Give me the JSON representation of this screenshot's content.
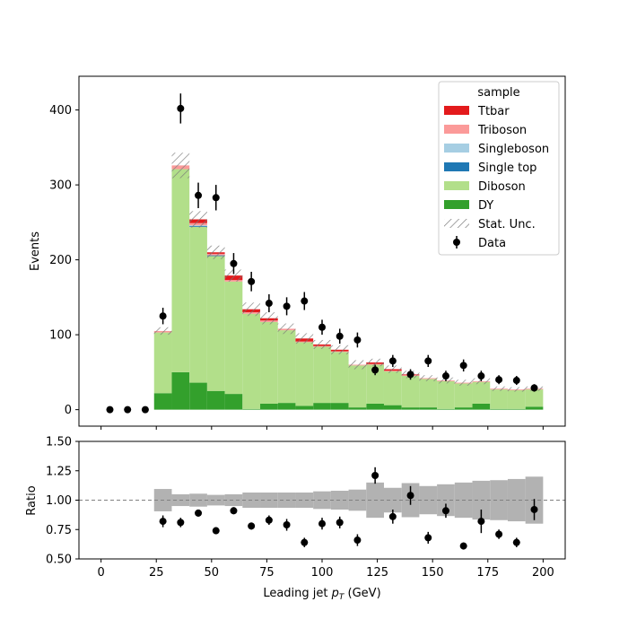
{
  "chart_data": [
    {
      "type": "stacked_histogram",
      "panel": "main",
      "ylabel": "Events",
      "xlim": [
        -10,
        210
      ],
      "ylim": [
        -22,
        445
      ],
      "x_ticks": [
        0,
        25,
        50,
        75,
        100,
        125,
        150,
        175,
        200
      ],
      "y_ticks": [
        0,
        100,
        200,
        300,
        400
      ],
      "bin_edges": [
        0,
        8,
        16,
        24,
        32,
        40,
        48,
        56,
        64,
        72,
        80,
        88,
        96,
        104,
        112,
        120,
        128,
        136,
        144,
        152,
        160,
        168,
        176,
        184,
        192,
        200
      ],
      "legend_title": "sample",
      "legend_location": "top-right",
      "series": [
        {
          "name": "DY",
          "color": "#33a02c",
          "values": [
            0,
            0,
            0,
            22,
            50,
            36,
            25,
            21,
            1,
            8,
            9,
            5,
            9,
            9,
            3,
            8,
            6,
            3,
            3,
            1,
            3,
            8,
            1,
            1,
            4
          ]
        },
        {
          "name": "Diboson",
          "color": "#b2df8a",
          "values": [
            0,
            0,
            0,
            81,
            271,
            208,
            180,
            150,
            127,
            109,
            97,
            85,
            75,
            68,
            56,
            52,
            45,
            42,
            38,
            37,
            32,
            29,
            26,
            25,
            23
          ]
        },
        {
          "name": "Single top",
          "color": "#1f78b4",
          "values": [
            0,
            0,
            0,
            0,
            0,
            1,
            1,
            0,
            0,
            0,
            0,
            0,
            0,
            0,
            0,
            0,
            0,
            0,
            0,
            0,
            0,
            0,
            0,
            0,
            0
          ]
        },
        {
          "name": "Singleboson",
          "color": "#a6cee3",
          "values": [
            0,
            0,
            0,
            0,
            0,
            1,
            0,
            0,
            0,
            0,
            0,
            0,
            0,
            0,
            0,
            0,
            0,
            0,
            0,
            0,
            0,
            0,
            0,
            0,
            0
          ]
        },
        {
          "name": "Triboson",
          "color": "#fb9a99",
          "values": [
            0,
            0,
            0,
            2,
            5,
            3,
            2,
            2,
            2,
            2,
            2,
            1,
            1,
            1,
            1,
            1,
            1,
            1,
            1,
            1,
            1,
            1,
            1,
            1,
            1
          ]
        },
        {
          "name": "Ttbar",
          "color": "#e31a1c",
          "values": [
            0,
            0,
            0,
            0,
            0,
            5,
            2,
            6,
            4,
            3,
            0,
            4,
            2,
            2,
            0,
            2,
            2,
            1,
            0,
            0,
            0,
            0,
            0,
            0,
            0
          ]
        }
      ],
      "stat_unc_label": "Stat. Unc.",
      "stat_unc": [
        0,
        0,
        0,
        5,
        17,
        11,
        9,
        8,
        9,
        8,
        7,
        7,
        6,
        6,
        6,
        5,
        5,
        5,
        4,
        4,
        4,
        4,
        3,
        3,
        3
      ],
      "data": {
        "name": "Data",
        "x": [
          4,
          12,
          20,
          28,
          36,
          44,
          52,
          60,
          68,
          76,
          84,
          92,
          100,
          108,
          116,
          124,
          132,
          140,
          148,
          156,
          164,
          172,
          180,
          188,
          196
        ],
        "y": [
          0,
          0,
          0,
          125,
          402,
          286,
          283,
          195,
          171,
          142,
          138,
          145,
          110,
          98,
          93,
          53,
          65,
          47,
          65,
          45,
          59,
          45,
          40,
          39,
          29
        ],
        "yerr": [
          0,
          0,
          0,
          11,
          20,
          17,
          17,
          14,
          13,
          12,
          12,
          12,
          10,
          10,
          10,
          7,
          8,
          7,
          8,
          7,
          8,
          7,
          6,
          6,
          5
        ]
      }
    },
    {
      "type": "ratio",
      "panel": "ratio",
      "xlabel": "Leading jet  p_T (GeV)",
      "xlabel_main": "Leading jet  ",
      "xlabel_p": "p",
      "xlabel_sub": "T",
      "xlabel_unit": " (GeV)",
      "ylabel": "Ratio",
      "ylim": [
        0.5,
        1.5
      ],
      "y_ticks": [
        0.5,
        0.75,
        1.0,
        1.25,
        1.5
      ],
      "y_tick_labels": [
        "0.50",
        "0.75",
        "1.00",
        "1.25",
        "1.50"
      ],
      "x_tick_labels": [
        "0",
        "25",
        "50",
        "75",
        "100",
        "125",
        "150",
        "175",
        "200"
      ],
      "reference_line": 1.0,
      "x": [
        28,
        36,
        44,
        52,
        60,
        68,
        76,
        84,
        92,
        100,
        108,
        116,
        124,
        132,
        140,
        148,
        156,
        164,
        172,
        180,
        188,
        196
      ],
      "ratio": [
        0.82,
        0.81,
        0.89,
        0.74,
        0.91,
        0.78,
        0.83,
        0.79,
        0.64,
        0.8,
        0.81,
        0.66,
        1.21,
        0.86,
        1.04,
        0.68,
        0.91,
        0.61,
        0.82,
        0.71,
        0.64,
        0.92
      ],
      "ratio_err": [
        0.05,
        0.04,
        0.03,
        0.03,
        0.03,
        0.03,
        0.04,
        0.05,
        0.04,
        0.05,
        0.05,
        0.05,
        0.07,
        0.06,
        0.08,
        0.05,
        0.06,
        0.03,
        0.1,
        0.04,
        0.04,
        0.09
      ],
      "unc_band_edges": [
        24,
        32,
        40,
        48,
        56,
        64,
        72,
        80,
        88,
        96,
        104,
        112,
        120,
        128,
        136,
        144,
        152,
        160,
        168,
        176,
        184,
        192,
        200
      ],
      "unc_band_half_width": [
        0.095,
        0.05,
        0.055,
        0.045,
        0.05,
        0.065,
        0.065,
        0.065,
        0.065,
        0.075,
        0.08,
        0.09,
        0.15,
        0.105,
        0.145,
        0.12,
        0.135,
        0.15,
        0.165,
        0.17,
        0.18,
        0.2
      ]
    }
  ]
}
